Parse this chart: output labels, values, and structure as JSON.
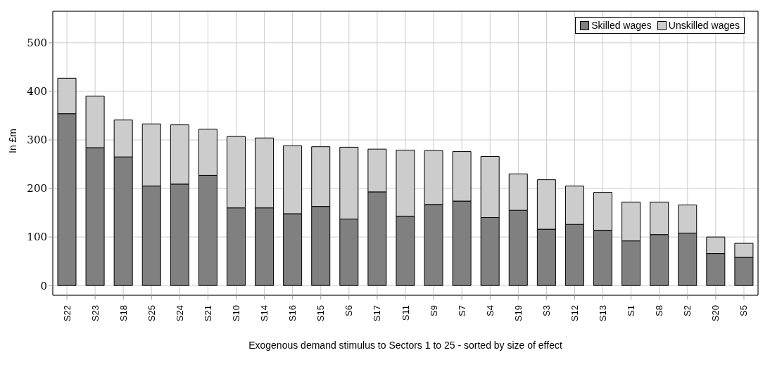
{
  "chart_data": {
    "type": "bar",
    "stacked": true,
    "xlabel": "Exogenous demand stimulus to Sectors 1 to 25 - sorted by size of effect",
    "ylabel": "In £m",
    "categories": [
      "S22",
      "S23",
      "S18",
      "S25",
      "S24",
      "S21",
      "S10",
      "S14",
      "S16",
      "S15",
      "S6",
      "S17",
      "S11",
      "S9",
      "S7",
      "S4",
      "S19",
      "S3",
      "S12",
      "S13",
      "S1",
      "S8",
      "S2",
      "S20",
      "S5"
    ],
    "series": [
      {
        "name": "Skilled wages",
        "color": "#808080",
        "values": [
          354,
          284,
          265,
          205,
          209,
          227,
          160,
          160,
          148,
          163,
          137,
          193,
          143,
          167,
          174,
          140,
          155,
          116,
          126,
          114,
          92,
          105,
          108,
          66,
          58
        ]
      },
      {
        "name": "Unskilled wages",
        "color": "#cccccc",
        "values": [
          73,
          106,
          76,
          128,
          122,
          95,
          147,
          144,
          140,
          123,
          148,
          88,
          136,
          111,
          102,
          126,
          75,
          102,
          79,
          78,
          80,
          67,
          58,
          34,
          29
        ]
      }
    ],
    "ylim": [
      -20,
      565
    ],
    "yticks": [
      0,
      100,
      200,
      300,
      400,
      500
    ],
    "grid": true,
    "legend": "top right"
  }
}
